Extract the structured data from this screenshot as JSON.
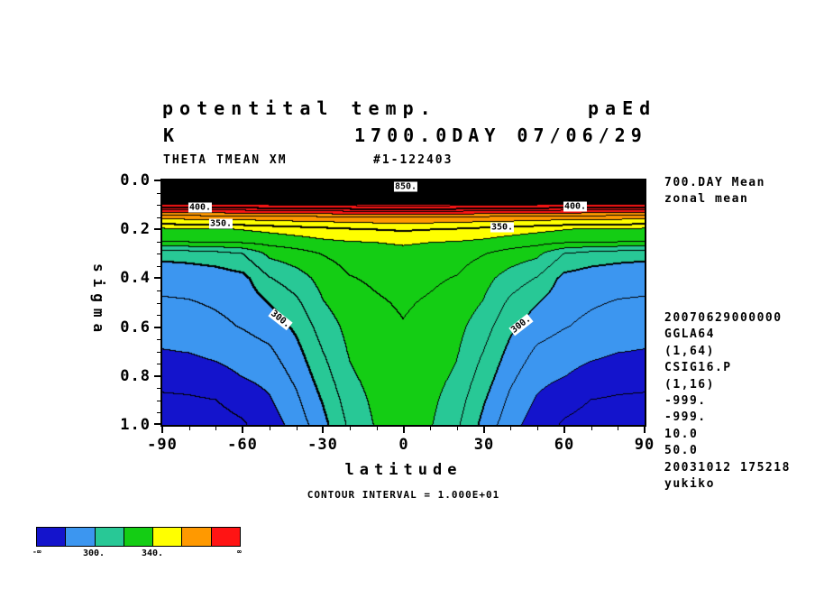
{
  "header": {
    "title_left": "potentital temp.",
    "title_right": "paEd",
    "unit": "K",
    "time_label": "1700.0DAY 07/06/29",
    "sub_left": "THETA TMEAN XM",
    "sub_right": "#1-122403"
  },
  "right_panel": {
    "top_lines": [
      "700.DAY Mean",
      "zonal mean"
    ],
    "bottom_lines": [
      "20070629000000",
      "GGLA64",
      "(1,64)",
      "CSIG16.P",
      "(1,16)",
      "-999.",
      "-999.",
      "10.0",
      "50.0",
      "20031012 175218",
      "yukiko"
    ]
  },
  "footer": {
    "contour_interval_text": "CONTOUR INTERVAL = 1.000E+01"
  },
  "axes": {
    "x": {
      "label": "latitude",
      "tick_labels": [
        "-90",
        "-60",
        "-30",
        "0",
        "30",
        "60",
        "90"
      ],
      "tick_values": [
        -90,
        -60,
        -30,
        0,
        30,
        60,
        90
      ],
      "minor_step": 10,
      "range": [
        -90,
        90
      ]
    },
    "y": {
      "label": "sigma",
      "tick_labels": [
        "0.0",
        "0.2",
        "0.4",
        "0.6",
        "0.8",
        "1.0"
      ],
      "tick_values": [
        0,
        0.2,
        0.4,
        0.6,
        0.8,
        1.0
      ],
      "minor_step": 0.05,
      "range": [
        0,
        1
      ]
    }
  },
  "colorbar": {
    "colors": [
      "#1414cc",
      "#3c96f0",
      "#28c896",
      "#14cd14",
      "#ffff00",
      "#ff9900",
      "#ff1414"
    ],
    "boundaries": [
      280,
      300,
      320,
      340,
      360,
      380
    ],
    "labels": [
      {
        "text": "300.",
        "boundary_index": 1
      },
      {
        "text": "340.",
        "boundary_index": 3
      }
    ],
    "end_left": "-∞",
    "end_right": "∞"
  },
  "chart_data": {
    "type": "heatmap",
    "title": "potentital temp.",
    "units": "K",
    "xlabel": "latitude",
    "ylabel": "sigma",
    "contour_interval": 10,
    "bold_interval": 50,
    "lat_range": [
      -90,
      90
    ],
    "sigma_range": [
      0,
      1
    ],
    "lats": [
      -90,
      -80,
      -70,
      -60,
      -50,
      -40,
      -30,
      -20,
      -10,
      0,
      10,
      20,
      30,
      40,
      50,
      60,
      70,
      80,
      90
    ],
    "sigma_levels": [
      0,
      0.05,
      0.1,
      0.15,
      0.2,
      0.25,
      0.3,
      0.4,
      0.5,
      0.6,
      0.7,
      0.8,
      0.9,
      1.0
    ],
    "theta": [
      [
        1165,
        1166,
        1168,
        1170,
        1175,
        1180,
        1185,
        1190,
        1195,
        1200,
        1195,
        1190,
        1185,
        1180,
        1175,
        1170,
        1168,
        1166,
        1165
      ],
      [
        544,
        545,
        546,
        548,
        550,
        552,
        554,
        556,
        558,
        560,
        558,
        556,
        554,
        552,
        550,
        548,
        546,
        545,
        544
      ],
      [
        407.5,
        408,
        408.5,
        409,
        410,
        411,
        412,
        413,
        414,
        415,
        414,
        413,
        412,
        411,
        410,
        409,
        408.5,
        408,
        407.5
      ],
      [
        364.5,
        365,
        365.5,
        366,
        367,
        368,
        368.5,
        369,
        369.5,
        370,
        369.5,
        369,
        368.5,
        368,
        367,
        366,
        365.5,
        365,
        364.5
      ],
      [
        338,
        338.5,
        339,
        340.5,
        342.5,
        344.5,
        346.5,
        348.5,
        350,
        351,
        350,
        348.5,
        346.5,
        344.5,
        342.5,
        340.5,
        339,
        338.5,
        338
      ],
      [
        330.5,
        331,
        331.5,
        332.5,
        334,
        336,
        338.5,
        340,
        340.5,
        342,
        340.5,
        340,
        338.5,
        336,
        334,
        332.5,
        331.5,
        331,
        330.5
      ],
      [
        303,
        304,
        306,
        310,
        322.5,
        326,
        330.5,
        334,
        335,
        336,
        335,
        334,
        330.5,
        326,
        322.5,
        310,
        306,
        304,
        303
      ],
      [
        293,
        293.5,
        294.5,
        297,
        309.5,
        315.5,
        323.5,
        329.5,
        331.5,
        333,
        331.5,
        329.5,
        323.5,
        315.5,
        309.5,
        297,
        294.5,
        293.5,
        293
      ],
      [
        289,
        289.5,
        291,
        293,
        300.5,
        308,
        319.5,
        326,
        329,
        331,
        329,
        326,
        319.5,
        308,
        300.5,
        293,
        291,
        289.5,
        289
      ],
      [
        285.5,
        286,
        288,
        290.5,
        294,
        302,
        314.5,
        323,
        327,
        329.5,
        327,
        323,
        314.5,
        302,
        294,
        290.5,
        288,
        286,
        285.5
      ],
      [
        279.5,
        280.5,
        283,
        285.5,
        288.5,
        297,
        310,
        321,
        325.5,
        328,
        325.5,
        321,
        310,
        297,
        288.5,
        285.5,
        283,
        280.5,
        279.5
      ],
      [
        273.5,
        274,
        276,
        280.5,
        283.5,
        292.5,
        305.5,
        318.5,
        324,
        327,
        324,
        318.5,
        305.5,
        292.5,
        283.5,
        280.5,
        276,
        274,
        273.5
      ],
      [
        268.5,
        269,
        270,
        273.5,
        279,
        288,
        301,
        315,
        322.5,
        326,
        322.5,
        315,
        301,
        288,
        279,
        273.5,
        270,
        269,
        268.5
      ],
      [
        265,
        265.5,
        266.5,
        269,
        275,
        284,
        297,
        312,
        321,
        325,
        321,
        312,
        297,
        284,
        275,
        269,
        266.5,
        265.5,
        265
      ]
    ],
    "color_boundaries": [
      280,
      300,
      320,
      340,
      360,
      380
    ],
    "colors": [
      "#1414cc",
      "#3c96f0",
      "#28c896",
      "#14cd14",
      "#ffff00",
      "#ff9900",
      "#ff1414"
    ],
    "contour_labels": [
      {
        "text": "850.",
        "lat": 1,
        "sigma": 0.024,
        "rot": 0
      },
      {
        "text": "400.",
        "lat": -76,
        "sigma": 0.112,
        "rot": 0
      },
      {
        "text": "400.",
        "lat": 64,
        "sigma": 0.108,
        "rot": 0
      },
      {
        "text": "350.",
        "lat": -68,
        "sigma": 0.176,
        "rot": 0
      },
      {
        "text": "350.",
        "lat": 37,
        "sigma": 0.192,
        "rot": 0
      },
      {
        "text": "300.",
        "lat": -46,
        "sigma": 0.57,
        "rot": 38
      },
      {
        "text": "300.",
        "lat": 44,
        "sigma": 0.59,
        "rot": -38
      }
    ]
  }
}
